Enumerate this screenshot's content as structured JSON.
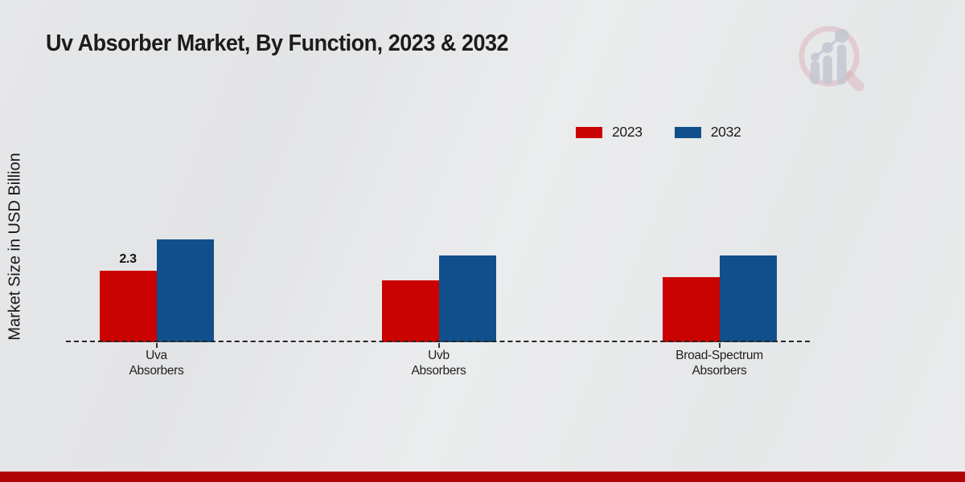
{
  "header": {
    "logo_icon": "magnifier-growth-chart-logo"
  },
  "colors": {
    "red_2023": "#cb0202",
    "blue_2032": "#114f8c",
    "bottom_band": "#b00404",
    "baseline": "#262626",
    "title_text": "#1c1c1c",
    "background": "#e8e9ea",
    "watermark_pink": "#d8a8b0",
    "watermark_gray": "#c3c7d1"
  },
  "chart_data": {
    "type": "bar",
    "title": "Uv Absorber Market, By Function, 2023 & 2032",
    "xlabel": "",
    "ylabel": "Market Size in USD Billion",
    "categories": [
      "Uva Absorbers",
      "Uvb Absorbers",
      "Broad-Spectrum Absorbers"
    ],
    "category_lines": [
      [
        "Uva",
        "Absorbers"
      ],
      [
        "Uvb",
        "Absorbers"
      ],
      [
        "Broad-Spectrum",
        "Absorbers"
      ]
    ],
    "series": [
      {
        "name": "2023",
        "color": "#cb0202",
        "values": [
          2.3,
          2.0,
          2.1
        ]
      },
      {
        "name": "2032",
        "color": "#114f8c",
        "values": [
          3.3,
          2.8,
          2.8
        ]
      }
    ],
    "data_labels": [
      {
        "series": "2023",
        "category": "Uva Absorbers",
        "text": "2.3"
      }
    ],
    "ylim": [
      0,
      3.5
    ],
    "grid": false,
    "y_axis_ticks_visible": false,
    "legend_position": "top-right",
    "baseline_style": "dashed"
  }
}
